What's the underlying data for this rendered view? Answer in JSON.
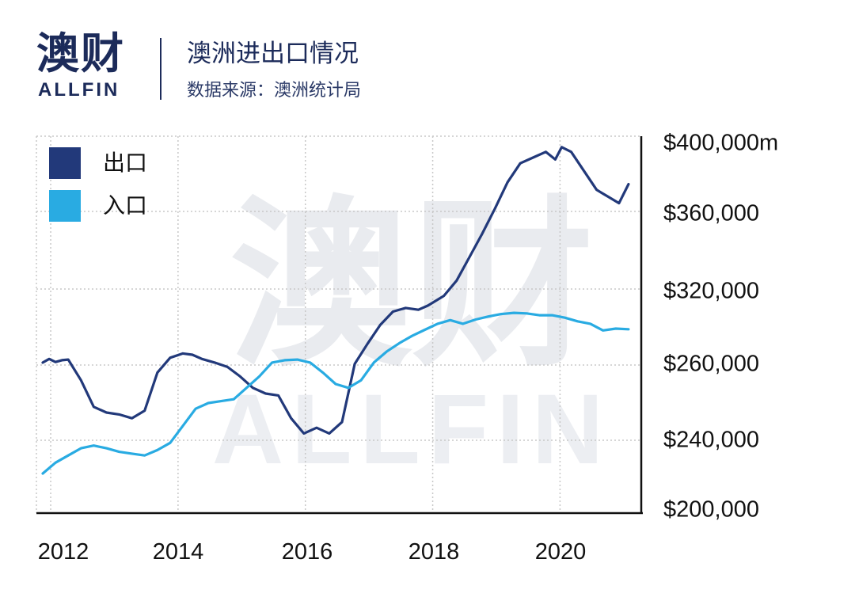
{
  "header": {
    "logo_cn": "澳财",
    "logo_en": "ALLFIN",
    "title": "澳洲进出口情况",
    "subtitle": "数据来源：澳洲统计局"
  },
  "watermark": {
    "cn": "澳财",
    "en": "ALLFIN"
  },
  "colors": {
    "exports": "#22397a",
    "imports": "#29abe2",
    "brand": "#1c2b5a",
    "accent": "#e2265c"
  },
  "chart_data": {
    "type": "line",
    "title": "",
    "xlabel": "",
    "ylabel": "",
    "xlim": [
      2011.9,
      2021.4
    ],
    "ylim": [
      200000,
      400000
    ],
    "x_ticks": [
      2012,
      2014,
      2016,
      2018,
      2020
    ],
    "x_tick_labels": [
      "2012",
      "2014",
      "2016",
      "2018",
      "2020"
    ],
    "y_ticks": [
      200000,
      240000,
      260000,
      320000,
      360000,
      400000
    ],
    "y_tick_labels": [
      "$200,000",
      "$240,000",
      "$260,000",
      "$320,000",
      "$360,000",
      "$400,000m"
    ],
    "grid": true,
    "legend_position": "top-left",
    "series": [
      {
        "name": "出口",
        "color": "#22397a",
        "x": [
          2012.0,
          2012.1,
          2012.2,
          2012.3,
          2012.4,
          2012.6,
          2012.8,
          2013.0,
          2013.2,
          2013.4,
          2013.6,
          2013.8,
          2014.0,
          2014.2,
          2014.35,
          2014.5,
          2014.7,
          2014.9,
          2015.1,
          2015.3,
          2015.5,
          2015.7,
          2015.9,
          2016.1,
          2016.3,
          2016.5,
          2016.7,
          2016.9,
          2017.1,
          2017.3,
          2017.5,
          2017.7,
          2017.9,
          2018.05,
          2018.3,
          2018.5,
          2018.7,
          2018.9,
          2019.1,
          2019.3,
          2019.5,
          2019.7,
          2019.9,
          2020.05,
          2020.15,
          2020.3,
          2020.5,
          2020.7,
          2020.9,
          2021.05,
          2021.2
        ],
        "values": [
          262000,
          265000,
          262500,
          264000,
          264500,
          256000,
          249000,
          247500,
          247000,
          246000,
          248000,
          258000,
          266000,
          269500,
          268500,
          265000,
          262000,
          259500,
          257000,
          254000,
          252500,
          252000,
          246000,
          242000,
          243500,
          242000,
          245000,
          261000,
          277500,
          293000,
          304000,
          307000,
          305500,
          309000,
          317000,
          326000,
          338000,
          350000,
          363000,
          377000,
          387000,
          390000,
          393000,
          389000,
          395500,
          393000,
          383000,
          373000,
          369000,
          366000,
          376000
        ]
      },
      {
        "name": "入口",
        "color": "#29abe2",
        "x": [
          2012.0,
          2012.2,
          2012.4,
          2012.6,
          2012.8,
          2013.0,
          2013.2,
          2013.4,
          2013.6,
          2013.8,
          2014.0,
          2014.2,
          2014.4,
          2014.6,
          2014.8,
          2015.0,
          2015.2,
          2015.4,
          2015.6,
          2015.8,
          2016.0,
          2016.2,
          2016.4,
          2016.6,
          2016.8,
          2017.0,
          2017.2,
          2017.4,
          2017.6,
          2017.8,
          2018.0,
          2018.2,
          2018.4,
          2018.6,
          2018.8,
          2019.0,
          2019.2,
          2019.4,
          2019.6,
          2019.8,
          2020.0,
          2020.2,
          2020.4,
          2020.6,
          2020.8,
          2021.0,
          2021.2
        ],
        "values": [
          222000,
          228000,
          232000,
          236000,
          237500,
          236000,
          234000,
          233000,
          232000,
          235000,
          239000,
          244000,
          248500,
          250000,
          250500,
          251000,
          254000,
          257000,
          262000,
          264000,
          264500,
          262000,
          258000,
          255000,
          254000,
          256000,
          262000,
          271000,
          278000,
          284000,
          289000,
          294000,
          297000,
          294000,
          297500,
          300000,
          302000,
          303000,
          302500,
          301000,
          301000,
          299000,
          296000,
          294000,
          288500,
          290000,
          289500
        ]
      }
    ]
  }
}
